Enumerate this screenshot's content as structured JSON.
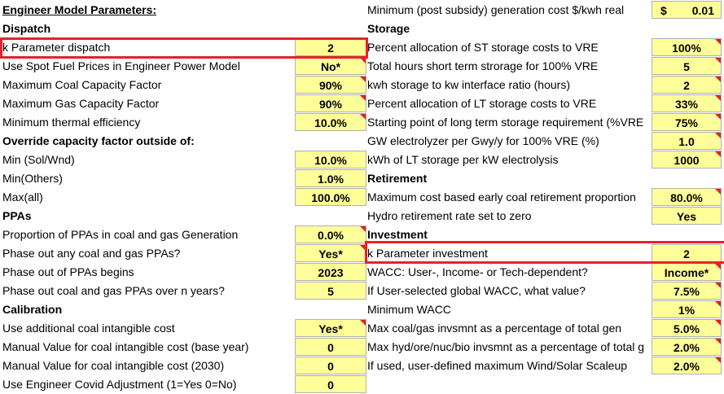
{
  "left": {
    "title": "Engineer Model Parameters:",
    "dispatch_header": "Dispatch",
    "k_param_dispatch": {
      "label": "k Parameter dispatch",
      "value": "2"
    },
    "spot_fuel": {
      "label": "Use Spot Fuel Prices in Engineer Power Model",
      "value": "No*"
    },
    "max_coal_cf": {
      "label": "Maximum Coal Capacity Factor",
      "value": "90%"
    },
    "max_gas_cf": {
      "label": "Maximum Gas Capacity Factor",
      "value": "90%"
    },
    "min_thermal": {
      "label": "Minimum thermal efficiency",
      "value": "10.0%"
    },
    "override_header": "Override capacity factor outside of:",
    "min_sol": {
      "label": "Min (Sol/Wnd)",
      "value": "10.0%"
    },
    "min_others": {
      "label": "Min(Others)",
      "value": "1.0%"
    },
    "max_all": {
      "label": "Max(all)",
      "value": "100.0%"
    },
    "ppas_header": "PPAs",
    "prop_ppas": {
      "label": "Proportion of PPAs in coal and gas Generation",
      "value": "0.0%"
    },
    "phase_out_any": {
      "label": "Phase out any coal and gas PPAs?",
      "value": "Yes*"
    },
    "phase_out_begins": {
      "label": "Phase out of PPAs begins",
      "value": "2023"
    },
    "phase_out_years": {
      "label": "Phase out coal and gas PPAs over n years?",
      "value": "5"
    },
    "calibration_header": "Calibration",
    "coal_intangible": {
      "label": "Use additional coal intangible cost",
      "value": "Yes*"
    },
    "manual_base": {
      "label": "Manual Value for coal intangible cost (base year)",
      "value": "0"
    },
    "manual_2030": {
      "label": "Manual Value for coal intangible cost (2030)",
      "value": "0"
    },
    "covid": {
      "label": "Use Engineer Covid Adjustment (1=Yes 0=No)",
      "value": "0"
    }
  },
  "right": {
    "min_gen_cost": {
      "label": "Minimum (post subsidy) generation cost $/kwh real",
      "currency": "$",
      "value": "0.01"
    },
    "storage_header": "Storage",
    "st_alloc": {
      "label": "Percent allocation of ST storage costs to VRE",
      "value": "100%"
    },
    "st_hours": {
      "label": "Total hours short term strorage for 100% VRE",
      "value": "5"
    },
    "kwh_ratio": {
      "label": "kwh storage to kw interface ratio (hours)",
      "value": "2"
    },
    "lt_alloc": {
      "label": "Percent allocation of LT storage costs to VRE",
      "value": "33%"
    },
    "lt_start": {
      "label": "Starting point of long term storage requirement (%VRE",
      "value": "75%"
    },
    "gw_electrolyzer": {
      "label": "GW electrolyzer per Gwy/y for 100% VRE (%)",
      "value": "1.0"
    },
    "kwh_lt": {
      "label": "kWh of LT storage per kW electrolysis",
      "value": "1000"
    },
    "retirement_header": "Retirement",
    "max_early_coal": {
      "label": "Maximum cost based early coal retirement proportion",
      "value": "80.0%"
    },
    "hydro_retire": {
      "label": "Hydro retirement rate set to zero",
      "value": "Yes"
    },
    "investment_header": "Investment",
    "k_param_invest": {
      "label": "k Parameter investment",
      "value": "2"
    },
    "wacc_dep": {
      "label": "WACC: User-, Income- or Tech-dependent?",
      "value": "Income*"
    },
    "wacc_value": {
      "label": "If User-selected global WACC, what value?",
      "value": "7.5%"
    },
    "min_wacc": {
      "label": "Minimum WACC",
      "value": "1%"
    },
    "max_coal_gas_inv": {
      "label": "Max coal/gas invsmnt as a percentage of total gen",
      "value": "5.0%"
    },
    "max_hyd_inv": {
      "label": "Max hyd/ore/nuc/bio invsmnt as a percentage of total g",
      "value": "2.0%"
    },
    "wind_solar_scaleup": {
      "label": "If used, user-defined maximum Wind/Solar Scaleup",
      "value": "2.0%"
    }
  },
  "colors": {
    "cell_bg": "#ffff99",
    "highlight": "#e8212b",
    "comment_marker": "#e0202a"
  }
}
